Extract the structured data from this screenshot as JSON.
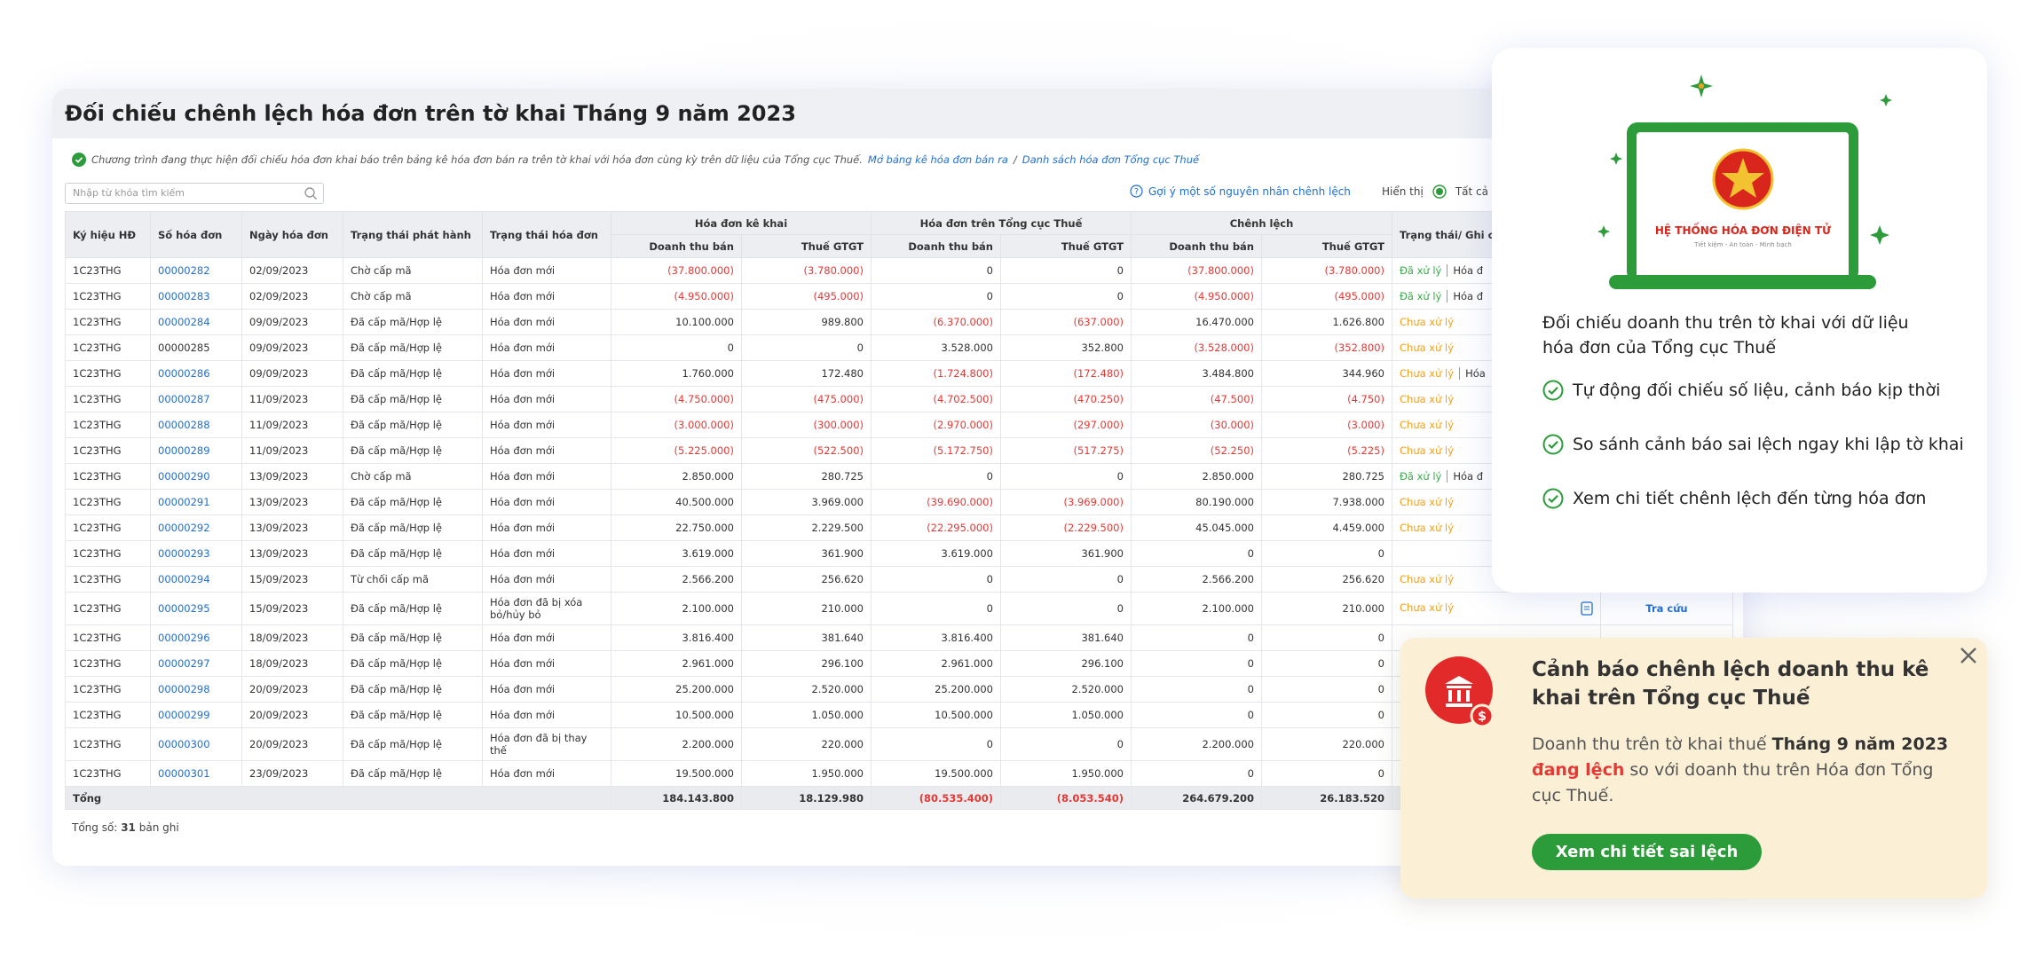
{
  "title": "Đối chiếu chênh lệch hóa đơn trên tờ khai Tháng 9 năm 2023",
  "info": {
    "text": "Chương trình đang thực hiện đối chiếu hóa đơn khai báo trên bảng kê hóa đơn bán ra trên tờ khai với hóa đơn cùng kỳ trên dữ liệu của Tổng cục Thuế.",
    "link1": "Mở bảng kê hóa đơn bán ra",
    "separator": "/",
    "link2": "Danh sách hóa đơn Tổng cục Thuế"
  },
  "toolbar": {
    "search_placeholder": "Nhập từ khóa tìm kiếm",
    "hint": "Gợi ý một số nguyên nhân chênh lệch",
    "display_label": "Hiển thị",
    "display_option": "Tất cả"
  },
  "table": {
    "negative_color": "#e53935",
    "link_color": "#1f6fd0",
    "headers": [
      "Ký hiệu HĐ",
      "Số hóa đơn",
      "Ngày hóa đơn",
      "Trạng thái phát hành",
      "Trạng thái hóa đơn"
    ],
    "groups": [
      "Hóa đơn kê khai",
      "Hóa đơn trên Tổng cục Thuế",
      "Chênh lệch"
    ],
    "subheaders": [
      "Doanh thu bán",
      "Thuế GTGT",
      "Doanh thu bán",
      "Thuế GTGT",
      "Doanh thu bán",
      "Thuế GTGT"
    ],
    "status_header": "Trạng thái/ Ghi chú",
    "rows": [
      {
        "cells": [
          "1C23THG",
          "00000282",
          "02/09/2023",
          "Chờ cấp mã",
          "Hóa đơn mới",
          "(37.800.000)",
          "(3.780.000)",
          "0",
          "0",
          "(37.800.000)",
          "(3.780.000)"
        ],
        "status": {
          "text": "Đã xử lý",
          "color": "#3aa94a"
        },
        "note": "Hóa đ"
      },
      {
        "cells": [
          "1C23THG",
          "00000283",
          "02/09/2023",
          "Chờ cấp mã",
          "Hóa đơn mới",
          "(4.950.000)",
          "(495.000)",
          "0",
          "0",
          "(4.950.000)",
          "(495.000)"
        ],
        "status": {
          "text": "Đã xử lý",
          "color": "#3aa94a"
        },
        "note": "Hóa đ"
      },
      {
        "cells": [
          "1C23THG",
          "00000284",
          "09/09/2023",
          "Đã cấp mã/Hợp lệ",
          "Hóa đơn mới",
          "10.100.000",
          "989.800",
          "(6.370.000)",
          "(637.000)",
          "16.470.000",
          "1.626.800"
        ],
        "status": {
          "text": "Chưa xử lý",
          "color": "#f0a020"
        }
      },
      {
        "cells": [
          "1C23THG",
          "00000285",
          "09/09/2023",
          "Đã cấp mã/Hợp lệ",
          "Hóa đơn mới",
          "0",
          "0",
          "3.528.000",
          "352.800",
          "(3.528.000)",
          "(352.800)"
        ],
        "status": {
          "text": "Chưa xử lý",
          "color": "#f0a020"
        },
        "plain_number": true
      },
      {
        "cells": [
          "1C23THG",
          "00000286",
          "09/09/2023",
          "Đã cấp mã/Hợp lệ",
          "Hóa đơn mới",
          "1.760.000",
          "172.480",
          "(1.724.800)",
          "(172.480)",
          "3.484.800",
          "344.960"
        ],
        "status": {
          "text": "Chưa xử lý",
          "color": "#f0a020"
        },
        "note": "Hóa"
      },
      {
        "cells": [
          "1C23THG",
          "00000287",
          "11/09/2023",
          "Đã cấp mã/Hợp lệ",
          "Hóa đơn mới",
          "(4.750.000)",
          "(475.000)",
          "(4.702.500)",
          "(470.250)",
          "(47.500)",
          "(4.750)"
        ],
        "status": {
          "text": "Chưa xử lý",
          "color": "#f0a020"
        }
      },
      {
        "cells": [
          "1C23THG",
          "00000288",
          "11/09/2023",
          "Đã cấp mã/Hợp lệ",
          "Hóa đơn mới",
          "(3.000.000)",
          "(300.000)",
          "(2.970.000)",
          "(297.000)",
          "(30.000)",
          "(3.000)"
        ],
        "status": {
          "text": "Chưa xử lý",
          "color": "#f0a020"
        }
      },
      {
        "cells": [
          "1C23THG",
          "00000289",
          "11/09/2023",
          "Đã cấp mã/Hợp lệ",
          "Hóa đơn mới",
          "(5.225.000)",
          "(522.500)",
          "(5.172.750)",
          "(517.275)",
          "(52.250)",
          "(5.225)"
        ],
        "status": {
          "text": "Chưa xử lý",
          "color": "#f0a020"
        }
      },
      {
        "cells": [
          "1C23THG",
          "00000290",
          "13/09/2023",
          "Chờ cấp mã",
          "Hóa đơn mới",
          "2.850.000",
          "280.725",
          "0",
          "0",
          "2.850.000",
          "280.725"
        ],
        "status": {
          "text": "Đã xử lý",
          "color": "#3aa94a"
        },
        "note": "Hóa đ"
      },
      {
        "cells": [
          "1C23THG",
          "00000291",
          "13/09/2023",
          "Đã cấp mã/Hợp lệ",
          "Hóa đơn mới",
          "40.500.000",
          "3.969.000",
          "(39.690.000)",
          "(3.969.000)",
          "80.190.000",
          "7.938.000"
        ],
        "status": {
          "text": "Chưa xử lý",
          "color": "#f0a020"
        }
      },
      {
        "cells": [
          "1C23THG",
          "00000292",
          "13/09/2023",
          "Đã cấp mã/Hợp lệ",
          "Hóa đơn mới",
          "22.750.000",
          "2.229.500",
          "(22.295.000)",
          "(2.229.500)",
          "45.045.000",
          "4.459.000"
        ],
        "status": {
          "text": "Chưa xử lý",
          "color": "#f0a020"
        }
      },
      {
        "cells": [
          "1C23THG",
          "00000293",
          "13/09/2023",
          "Đã cấp mã/Hợp lệ",
          "Hóa đơn mới",
          "3.619.000",
          "361.900",
          "3.619.000",
          "361.900",
          "0",
          "0"
        ]
      },
      {
        "cells": [
          "1C23THG",
          "00000294",
          "15/09/2023",
          "Từ chối cấp mã",
          "Hóa đơn mới",
          "2.566.200",
          "256.620",
          "0",
          "0",
          "2.566.200",
          "256.620"
        ],
        "status": {
          "text": "Chưa xử lý",
          "color": "#f0a020"
        }
      },
      {
        "cells": [
          "1C23THG",
          "00000295",
          "15/09/2023",
          "Đã cấp mã/Hợp lệ",
          "Hóa đơn đã bị xóa bỏ/hủy bỏ",
          "2.100.000",
          "210.000",
          "0",
          "0",
          "2.100.000",
          "210.000"
        ],
        "status": {
          "text": "Chưa xử lý",
          "color": "#f0a020"
        },
        "action": "Tra cứu"
      },
      {
        "cells": [
          "1C23THG",
          "00000296",
          "18/09/2023",
          "Đã cấp mã/Hợp lệ",
          "Hóa đơn mới",
          "3.816.400",
          "381.640",
          "3.816.400",
          "381.640",
          "0",
          "0"
        ]
      },
      {
        "cells": [
          "1C23THG",
          "00000297",
          "18/09/2023",
          "Đã cấp mã/Hợp lệ",
          "Hóa đơn mới",
          "2.961.000",
          "296.100",
          "2.961.000",
          "296.100",
          "0",
          "0"
        ]
      },
      {
        "cells": [
          "1C23THG",
          "00000298",
          "20/09/2023",
          "Đã cấp mã/Hợp lệ",
          "Hóa đơn mới",
          "25.200.000",
          "2.520.000",
          "25.200.000",
          "2.520.000",
          "0",
          "0"
        ]
      },
      {
        "cells": [
          "1C23THG",
          "00000299",
          "20/09/2023",
          "Đã cấp mã/Hợp lệ",
          "Hóa đơn mới",
          "10.500.000",
          "1.050.000",
          "10.500.000",
          "1.050.000",
          "0",
          "0"
        ]
      },
      {
        "cells": [
          "1C23THG",
          "00000300",
          "20/09/2023",
          "Đã cấp mã/Hợp lệ",
          "Hóa đơn đã bị thay thế",
          "2.200.000",
          "220.000",
          "0",
          "0",
          "2.200.000",
          "220.000"
        ]
      },
      {
        "cells": [
          "1C23THG",
          "00000301",
          "23/09/2023",
          "Đã cấp mã/Hợp lệ",
          "Hóa đơn mới",
          "19.500.000",
          "1.950.000",
          "19.500.000",
          "1.950.000",
          "0",
          "0"
        ]
      }
    ],
    "total": {
      "label": "Tổng",
      "values": [
        "184.143.800",
        "18.129.980",
        "(80.535.400)",
        "(8.053.540)",
        "264.679.200",
        "26.183.520"
      ]
    }
  },
  "footer": {
    "prefix": "Tổng số:",
    "count": 31,
    "suffix": "bản ghi"
  },
  "panel": {
    "logo_title": "HỆ THỐNG HÓA ĐƠN ĐIỆN TỬ",
    "logo_slogan": "Tiết kiệm - An toàn - Minh bạch",
    "heading": "Đối chiếu doanh thu trên tờ khai với dữ liệu hóa đơn của Tổng cục Thuế",
    "bullets": [
      "Tự động đối chiếu số liệu, cảnh báo kịp thời",
      "So sánh cảnh báo sai lệch ngay khi lập tờ khai",
      "Xem chi tiết chênh lệch đến từng hóa đơn"
    ]
  },
  "alert": {
    "title": "Cảnh báo chênh lệch doanh thu kê khai trên Tổng cục Thuế",
    "body_start": "Doanh thu trên tờ khai thuế",
    "body_period": "Tháng 9 năm 2023",
    "body_warning": "đang lệch",
    "body_end": "so với doanh thu trên Hóa đơn Tổng cục Thuế.",
    "button": "Xem chi tiết sai lệch"
  }
}
